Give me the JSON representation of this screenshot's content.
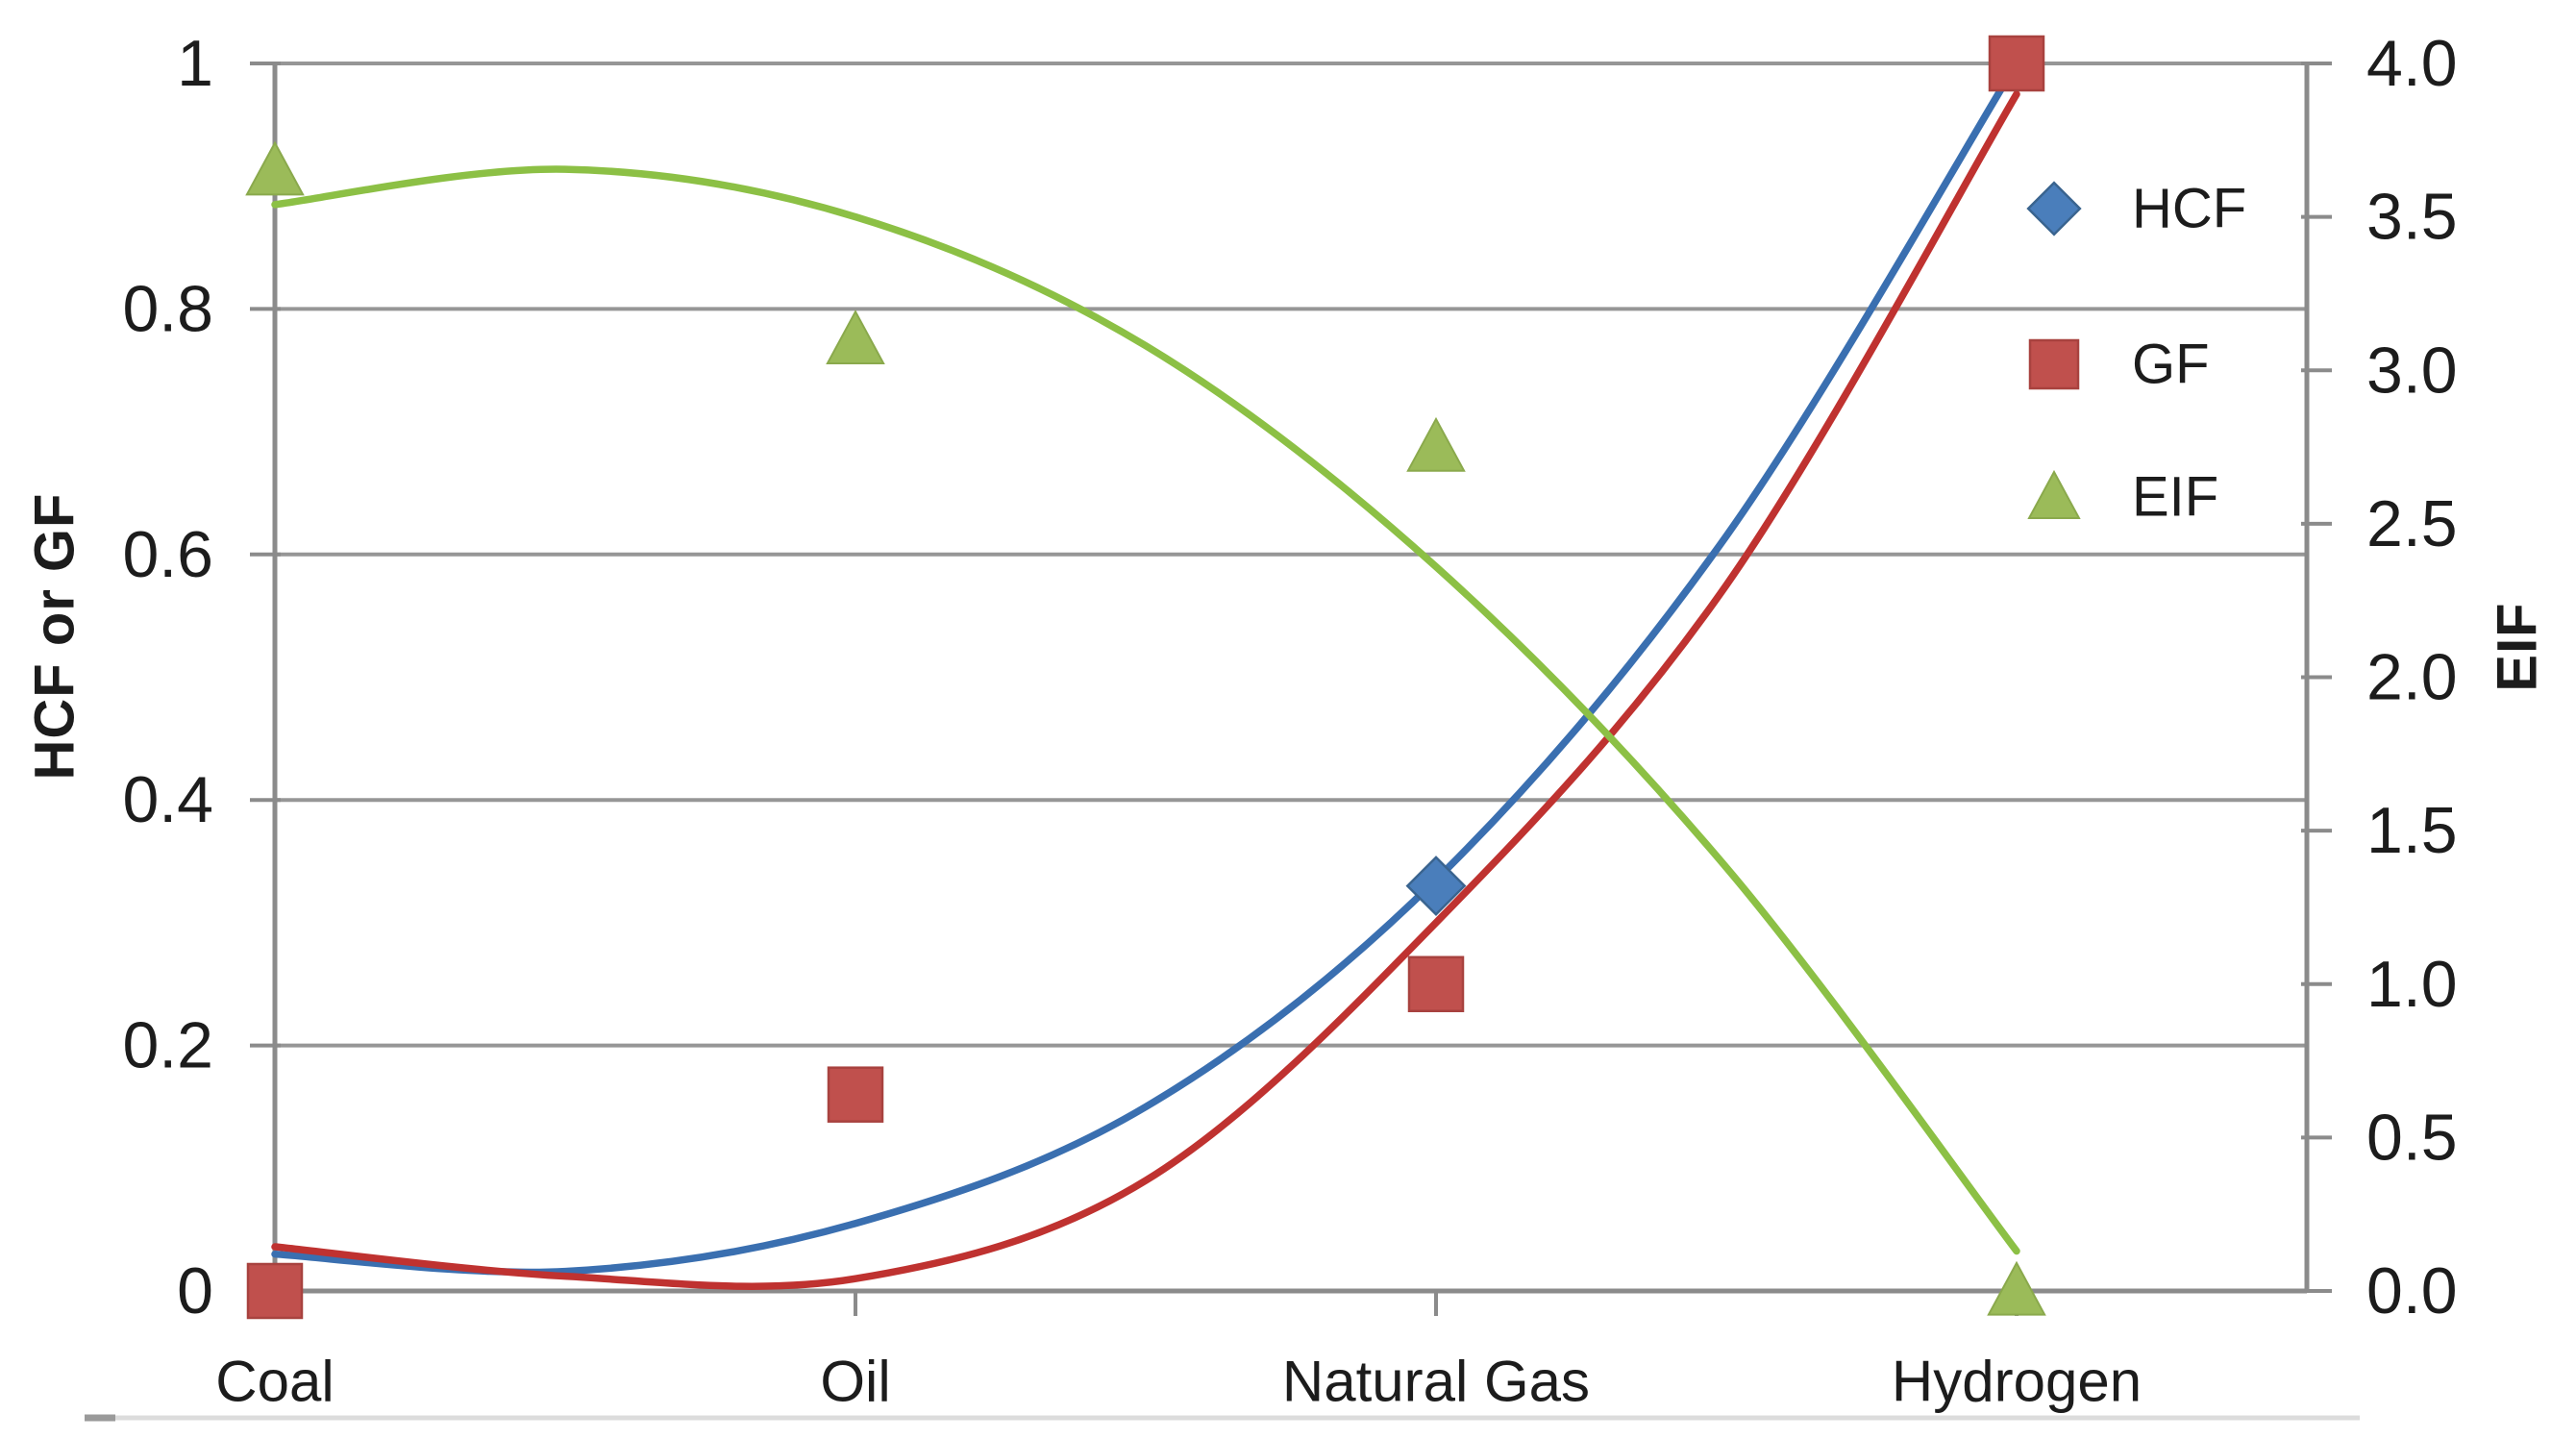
{
  "chart_data": {
    "type": "scatter",
    "title": "",
    "categories": [
      "Coal",
      "Oil",
      "Natural Gas",
      "Hydrogen"
    ],
    "left_axis": {
      "label": "HCF or GF",
      "min": 0,
      "max": 1,
      "tick_labels": [
        "1",
        "0.8",
        "0.6",
        "0.4",
        "0.2",
        "0"
      ],
      "tick_values": [
        1,
        0.8,
        0.6,
        0.4,
        0.2,
        0
      ]
    },
    "right_axis": {
      "label": "EIF",
      "min": 0,
      "max": 4,
      "tick_labels": [
        "4.0",
        "3.5",
        "3.0",
        "2.5",
        "2.0",
        "1.5",
        "1.0",
        "0.5",
        "0.0"
      ],
      "tick_values": [
        4,
        3.5,
        3,
        2.5,
        2,
        1.5,
        1,
        0.5,
        0
      ]
    },
    "series": [
      {
        "name": "HCF",
        "marker": "diamond",
        "color": "#4a7ebb",
        "stroke": "#3a648f",
        "axis": "left",
        "points": [
          {
            "category": "Natural Gas",
            "value": 0.33
          }
        ]
      },
      {
        "name": "GF",
        "marker": "square",
        "color": "#c0504d",
        "stroke": "#a8423f",
        "axis": "left",
        "points": [
          {
            "category": "Coal",
            "value": 0.0
          },
          {
            "category": "Oil",
            "value": 0.16
          },
          {
            "category": "Natural Gas",
            "value": 0.25
          },
          {
            "category": "Hydrogen",
            "value": 1.0
          }
        ]
      },
      {
        "name": "EIF",
        "marker": "triangle",
        "color": "#9bbb59",
        "stroke": "#8aa94c",
        "axis": "right",
        "points": [
          {
            "category": "Coal",
            "value": 3.65
          },
          {
            "category": "Oil",
            "value": 3.1
          },
          {
            "category": "Natural Gas",
            "value": 2.75
          },
          {
            "category": "Hydrogen",
            "value": 0.0
          }
        ]
      }
    ],
    "trendlines": [
      {
        "series": "HCF",
        "axis": "left",
        "color": "#3a6fb0",
        "samples": [
          [
            0,
            0.03
          ],
          [
            0.5,
            0.016
          ],
          [
            1,
            0.055
          ],
          [
            1.5,
            0.15
          ],
          [
            2,
            0.335
          ],
          [
            2.5,
            0.615
          ],
          [
            3,
            1.0
          ]
        ]
      },
      {
        "series": "GF",
        "axis": "left",
        "color": "#bf3230",
        "samples": [
          [
            0,
            0.036
          ],
          [
            0.5,
            0.012
          ],
          [
            1,
            0.01
          ],
          [
            1.5,
            0.09
          ],
          [
            2,
            0.3
          ],
          [
            2.5,
            0.575
          ],
          [
            3,
            0.975
          ]
        ]
      },
      {
        "series": "EIF",
        "axis": "right",
        "color": "#8cc045",
        "samples": [
          [
            0,
            3.54
          ],
          [
            0.5,
            3.655
          ],
          [
            1,
            3.5
          ],
          [
            1.5,
            3.08
          ],
          [
            2,
            2.36
          ],
          [
            2.5,
            1.38
          ],
          [
            3,
            0.13
          ]
        ]
      }
    ],
    "legend": {
      "position": "inside-right",
      "entries": [
        "HCF",
        "GF",
        "EIF"
      ]
    },
    "grid": true,
    "grid_color": "#969696",
    "axis_color": "#8b8b8b",
    "text_color": "#1c1c1c",
    "xlabel": "",
    "ylabel_left": "HCF or GF",
    "ylabel_right": "EIF"
  }
}
